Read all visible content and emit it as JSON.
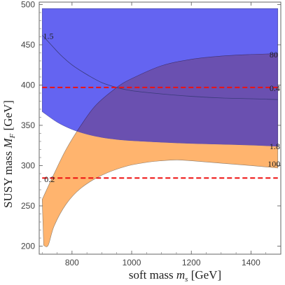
{
  "chart_data": {
    "type": "area",
    "title": "",
    "xlabel": "soft mass",
    "xlabel_symbol": "m",
    "xlabel_sub": "s",
    "xlabel_unit": "[GeV]",
    "ylabel": "SUSY mass",
    "ylabel_symbol": "M",
    "ylabel_sub": "F",
    "ylabel_unit": "[GeV]",
    "xlim": [
      690,
      1500
    ],
    "ylim": [
      190,
      503
    ],
    "xticks": [
      800,
      1000,
      1200,
      1400
    ],
    "yticks": [
      200,
      250,
      300,
      350,
      400,
      450,
      500
    ],
    "grid": false,
    "colors": {
      "blue_region": "#5c5cf0",
      "orange_region": "#ffb46e",
      "overlap_region": "#6a50b0",
      "dashed_line": "#ee1111",
      "contour_line": "#3a3a7a"
    },
    "regions": [
      {
        "name": "blue",
        "upper": [
          [
            700,
            495
          ],
          [
            1490,
            495
          ]
        ],
        "lower": [
          [
            700,
            367
          ],
          [
            750,
            354
          ],
          [
            800,
            345
          ],
          [
            850,
            339
          ],
          [
            900,
            335
          ],
          [
            950,
            332.5
          ],
          [
            1000,
            331
          ],
          [
            1100,
            329
          ],
          [
            1200,
            327.5
          ],
          [
            1300,
            326.5
          ],
          [
            1400,
            325.5
          ],
          [
            1490,
            324
          ]
        ]
      },
      {
        "name": "orange",
        "upper": [
          [
            700,
            258
          ],
          [
            740,
            290
          ],
          [
            780,
            320
          ],
          [
            830,
            350
          ],
          [
            880,
            375
          ],
          [
            950,
            397
          ],
          [
            1000,
            408
          ],
          [
            1100,
            424
          ],
          [
            1200,
            432
          ],
          [
            1300,
            436
          ],
          [
            1400,
            438
          ],
          [
            1490,
            439
          ]
        ],
        "lower": [
          [
            705,
            201
          ],
          [
            720,
            201
          ],
          [
            740,
            225
          ],
          [
            780,
            252
          ],
          [
            830,
            272
          ],
          [
            900,
            288
          ],
          [
            980,
            299
          ],
          [
            1050,
            304
          ],
          [
            1100,
            306
          ],
          [
            1150,
            307
          ],
          [
            1200,
            306
          ],
          [
            1300,
            303
          ],
          [
            1400,
            300
          ],
          [
            1490,
            297
          ]
        ]
      }
    ],
    "contour_curve": [
      [
        700,
        462
      ],
      [
        730,
        450
      ],
      [
        760,
        438
      ],
      [
        800,
        425
      ],
      [
        850,
        413
      ],
      [
        900,
        403
      ],
      [
        950,
        397
      ],
      [
        1000,
        393
      ],
      [
        1100,
        389
      ],
      [
        1200,
        386
      ],
      [
        1300,
        384
      ],
      [
        1400,
        383
      ],
      [
        1490,
        382
      ]
    ],
    "dashed_lines": [
      {
        "y": 397,
        "x_range": [
          700,
          1490
        ]
      },
      {
        "y": 284.5,
        "x_range": [
          700,
          1490
        ]
      }
    ],
    "annotations": [
      {
        "text": "1.5",
        "x": 703,
        "y": 461
      },
      {
        "text": "80",
        "x": 1462,
        "y": 438
      },
      {
        "text": "0.4",
        "x": 1462,
        "y": 396
      },
      {
        "text": "1.8",
        "x": 1462,
        "y": 324
      },
      {
        "text": "100",
        "x": 1456,
        "y": 302
      },
      {
        "text": "0.2",
        "x": 707,
        "y": 283
      }
    ]
  }
}
